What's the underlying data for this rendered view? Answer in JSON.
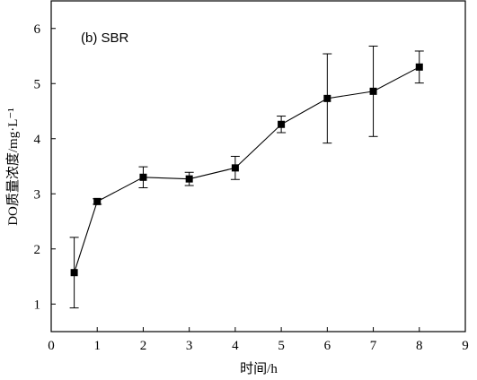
{
  "chart_data": {
    "type": "line",
    "annotation": "(b) SBR",
    "xlabel": "时间/h",
    "ylabel": "DO质量浓度/mg·L⁻¹",
    "xlim": [
      0,
      9
    ],
    "ylim": [
      0.5,
      6.5
    ],
    "xticks": [
      0,
      1,
      2,
      3,
      4,
      5,
      6,
      7,
      8,
      9
    ],
    "yticks": [
      1,
      2,
      3,
      4,
      5,
      6
    ],
    "grid": false,
    "series": [
      {
        "x": [
          0.5,
          1,
          2,
          3,
          4,
          5,
          6,
          7,
          8
        ],
        "y": [
          1.57,
          2.86,
          3.3,
          3.27,
          3.47,
          4.26,
          4.73,
          4.86,
          5.3
        ],
        "yerr": [
          0.64,
          0.05,
          0.19,
          0.12,
          0.21,
          0.15,
          0.81,
          0.82,
          0.29
        ],
        "marker": "square",
        "color": "#000000"
      }
    ]
  }
}
